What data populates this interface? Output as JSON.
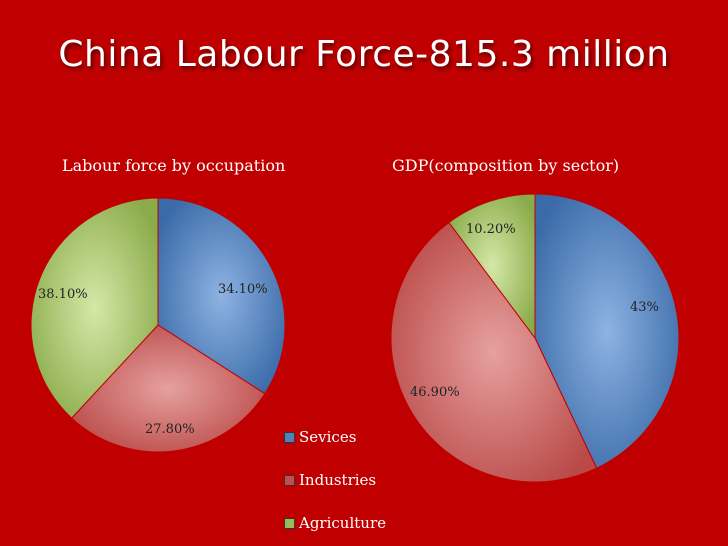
{
  "title": {
    "part1": "China Labour Force-",
    "part2": "815.3 million"
  },
  "colors": {
    "background": "#c00000",
    "services": "#4f81bd",
    "industries": "#c0504d",
    "agriculture": "#9bbb59"
  },
  "legend": [
    "Sevices",
    "Industries",
    "Agriculture"
  ],
  "chart_data": [
    {
      "type": "pie",
      "title": "Labour force by occupation",
      "slices": [
        {
          "label": "Sevices",
          "value": 34.1,
          "text": "34.10%"
        },
        {
          "label": "Industries",
          "value": 27.8,
          "text": "27.80%"
        },
        {
          "label": "Agriculture",
          "value": 38.1,
          "text": "38.10%"
        }
      ]
    },
    {
      "type": "pie",
      "title": "GDP(composition by sector)",
      "slices": [
        {
          "label": "Sevices",
          "value": 43,
          "text": "43%"
        },
        {
          "label": "Industries",
          "value": 46.9,
          "text": "46.90%"
        },
        {
          "label": "Agriculture",
          "value": 10.2,
          "text": "10.20%"
        }
      ]
    }
  ]
}
